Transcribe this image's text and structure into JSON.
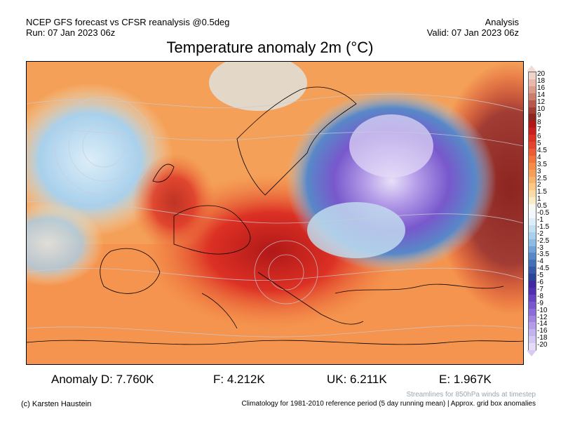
{
  "header": {
    "model_line": "NCEP GFS forecast vs CFSR reanalysis @0.5deg",
    "run_line": "Run: 07 Jan 2023 06z",
    "type_line": "Analysis",
    "valid_line": "Valid: 07 Jan 2023 06z"
  },
  "title": "Temperature anomaly 2m (°C)",
  "colorbar": {
    "labels": [
      "20",
      "18",
      "16",
      "14",
      "12",
      "10",
      "9",
      "8",
      "7",
      "6",
      "5",
      "4.5",
      "4",
      "3.5",
      "3",
      "2.5",
      "2",
      "1.5",
      "1",
      "0.5",
      "-0.5",
      "-1",
      "-1.5",
      "-2",
      "-2.5",
      "-3",
      "-3.5",
      "-4",
      "-4.5",
      "-5",
      "-6",
      "-7",
      "-8",
      "-9",
      "-10",
      "-12",
      "-14",
      "-16",
      "-18",
      "-20"
    ],
    "colors": [
      "#f0d4cc",
      "#e8b8ac",
      "#dc9c8c",
      "#cc7c6c",
      "#b8584c",
      "#a03c34",
      "#8c2420",
      "#b01818",
      "#c82020",
      "#dc3024",
      "#e4442c",
      "#ec5c34",
      "#f0743c",
      "#f48c48",
      "#f4a058",
      "#f8b46c",
      "#fcc884",
      "#fcdca4",
      "#fcecc8",
      "#f8f8f4",
      "#f4f8fc",
      "#dceef8",
      "#c4e0f0",
      "#a8d0ec",
      "#8cbce4",
      "#70a4d8",
      "#5888c8",
      "#4470b8",
      "#3858a8",
      "#2c4498",
      "#4028a0",
      "#5030b0",
      "#6444c0",
      "#7858cc",
      "#8c6cd8",
      "#a084e0",
      "#b49ce8",
      "#c4b4ee",
      "#d4c8f4",
      "#e4dcf8"
    ]
  },
  "stats": {
    "d": "Anomaly D: 7.760K",
    "f": "F: 4.212K",
    "uk": "UK: 6.211K",
    "e": "E: 1.967K"
  },
  "footer": {
    "credit": "(c) Karsten Haustein",
    "streamlines": "Streamlines for 850hPa winds at timestep",
    "climatology": "Climatology for 1981-2010 reference period (5 day running mean) | Approx. grid box anomalies"
  }
}
